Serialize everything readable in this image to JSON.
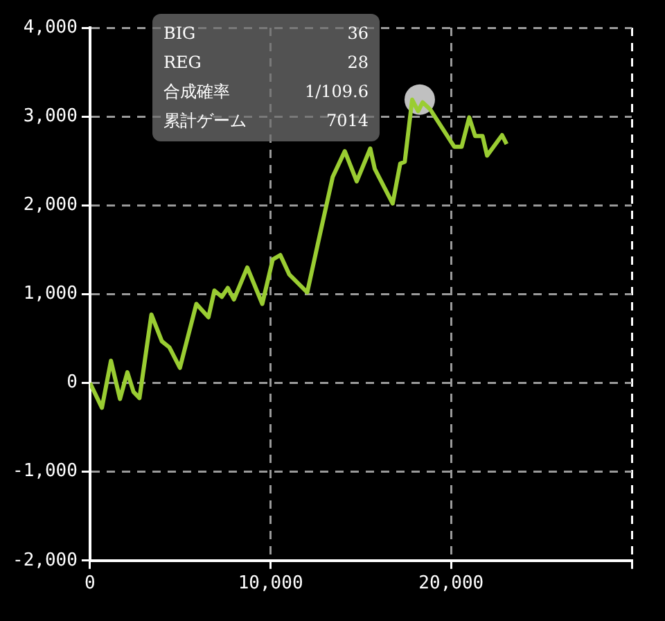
{
  "chart_data": {
    "type": "line",
    "xlim": [
      0,
      30000
    ],
    "ylim": [
      -2000,
      4000
    ],
    "xticks": [
      0,
      {
        "value": 10000,
        "label": "10,000"
      },
      {
        "value": 20000,
        "label": "20,000"
      },
      {
        "value": 30000,
        "label": null
      }
    ],
    "yticks": [
      {
        "value": -2000,
        "label": "-2,000"
      },
      {
        "value": -1000,
        "label": "-1,000"
      },
      0,
      {
        "value": 1000,
        "label": "1,000"
      },
      {
        "value": 2000,
        "label": "2,000"
      },
      {
        "value": 3000,
        "label": "3,000"
      },
      {
        "value": 4000,
        "label": "4,000"
      }
    ],
    "grid": true,
    "legend": false,
    "line_style": "solid",
    "marker": "none",
    "series": [
      {
        "color": "#9acd32",
        "x": [
          0,
          660,
          1160,
          1660,
          2070,
          2410,
          2740,
          3400,
          3980,
          4400,
          4980,
          5890,
          6560,
          6890,
          7300,
          7630,
          7970,
          8710,
          9540,
          10120,
          10540,
          11040,
          12030,
          12610,
          13440,
          14110,
          14770,
          15520,
          15770,
          16760,
          17180,
          17430,
          17840,
          18170,
          18420,
          18840,
          20170,
          20580,
          21000,
          21330,
          21740,
          21990,
          22820,
          23070
        ],
        "values": [
          0,
          -280,
          250,
          -180,
          120,
          -100,
          -170,
          770,
          470,
          400,
          170,
          890,
          740,
          1040,
          970,
          1070,
          940,
          1300,
          890,
          1390,
          1440,
          1220,
          1020,
          1560,
          2320,
          2610,
          2270,
          2640,
          2410,
          2020,
          2470,
          2490,
          3190,
          3060,
          3160,
          3080,
          2660,
          2660,
          2990,
          2780,
          2780,
          2560,
          2790,
          2690
        ]
      },
      {
        "type": "scatter",
        "marker": "circle",
        "color": "#c0c0c0",
        "x": [
          18260
        ],
        "values": [
          3190
        ]
      }
    ],
    "annotations": [
      "BIG",
      "36",
      "REG",
      "28",
      "合成確率",
      "1/109.6",
      "累計ゲーム",
      "7014"
    ]
  }
}
